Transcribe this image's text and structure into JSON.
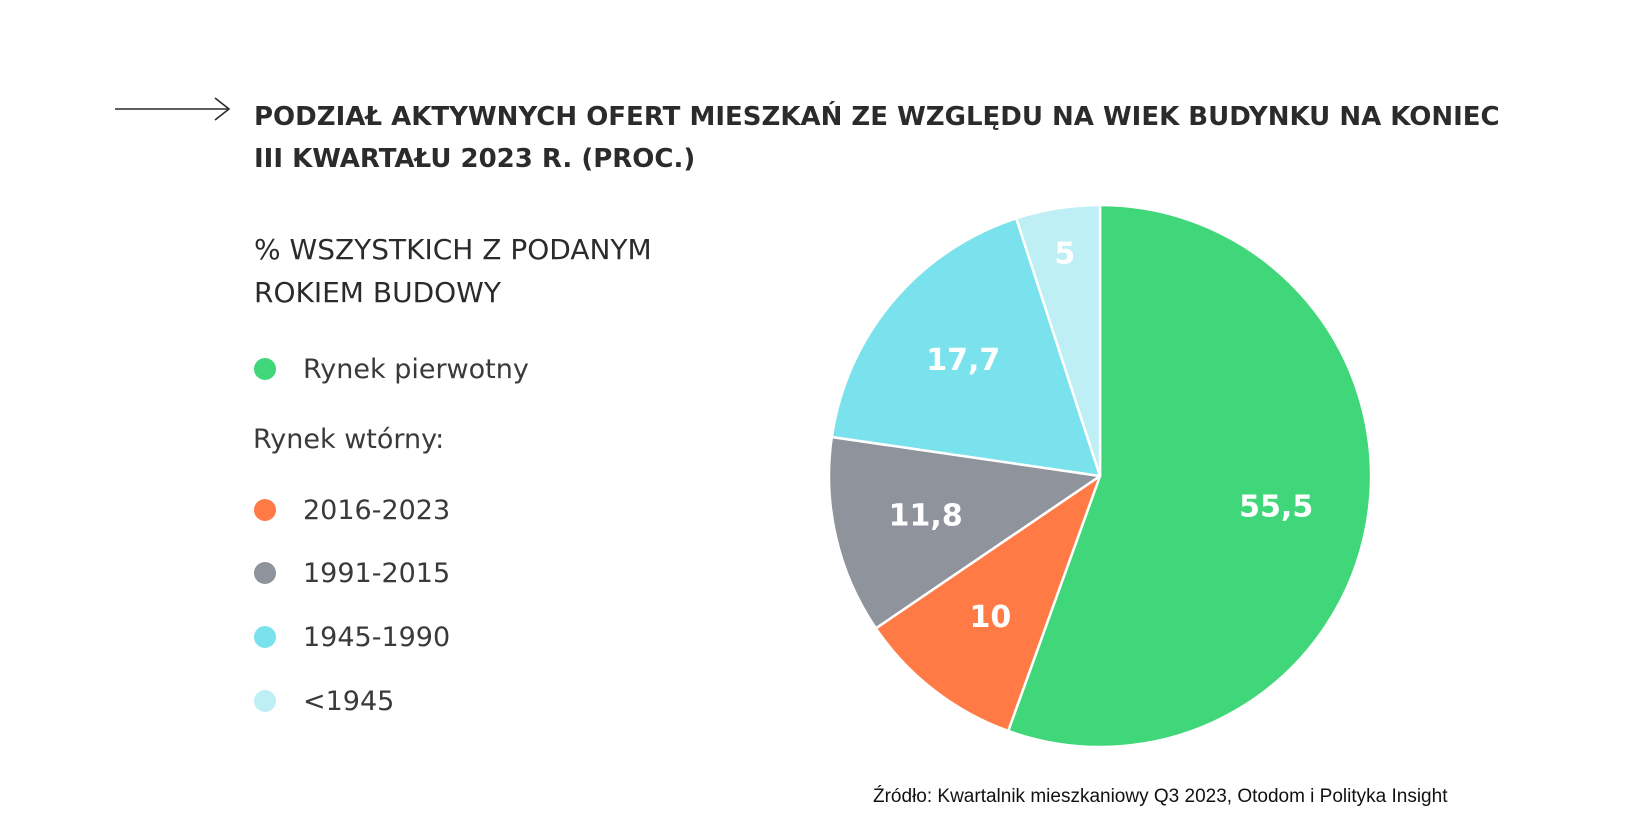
{
  "title": {
    "line1": "PODZIAŁ AKTYWNYCH OFERT MIESZKAŃ ZE WZGLĘDU NA WIEK BUDYNKU NA KONIEC",
    "line2": "III KWARTAŁU 2023 R. (PROC.)"
  },
  "subtitle": {
    "line1": "% WSZYSTKICH Z PODANYM",
    "line2": "ROKIEM BUDOWY"
  },
  "legend": {
    "primary_label": "Rynek pierwotny",
    "secondary_heading": "Rynek wtórny:",
    "items": [
      "2016-2023",
      "1991-2015",
      "1945-1990",
      "<1945"
    ]
  },
  "colors": {
    "primary": "#40d67a",
    "y2016_2023": "#ff7a45",
    "y1991_2015": "#8e939c",
    "y1945_1990": "#7ae2ec",
    "before1945": "#bdeff5",
    "text": "#2b2b2b"
  },
  "icon": "arrow-right-icon",
  "chart_data": {
    "type": "pie",
    "title": "PODZIAŁ AKTYWNYCH OFERT MIESZKAŃ ZE WZGLĘDU NA WIEK BUDYNKU NA KONIEC III KWARTAŁU 2023 R. (PROC.)",
    "subtitle": "% WSZYSTKICH Z PODANYM ROKIEM BUDOWY",
    "start": "12 o'clock, clockwise",
    "slices": [
      {
        "name": "Rynek pierwotny",
        "value": 55.5,
        "label": "55,5",
        "color": "#40d67a"
      },
      {
        "name": "2016-2023",
        "value": 10,
        "label": "10",
        "color": "#ff7a45"
      },
      {
        "name": "1991-2015",
        "value": 11.8,
        "label": "11,8",
        "color": "#8e939c"
      },
      {
        "name": "1945-1990",
        "value": 17.7,
        "label": "17,7",
        "color": "#7ae2ec"
      },
      {
        "name": "<1945",
        "value": 5,
        "label": "5",
        "color": "#bdeff5"
      }
    ],
    "legend_position": "left"
  },
  "source": "Źródło: Kwartalnik mieszkaniowy Q3 2023,  Otodom i Polityka Insight"
}
